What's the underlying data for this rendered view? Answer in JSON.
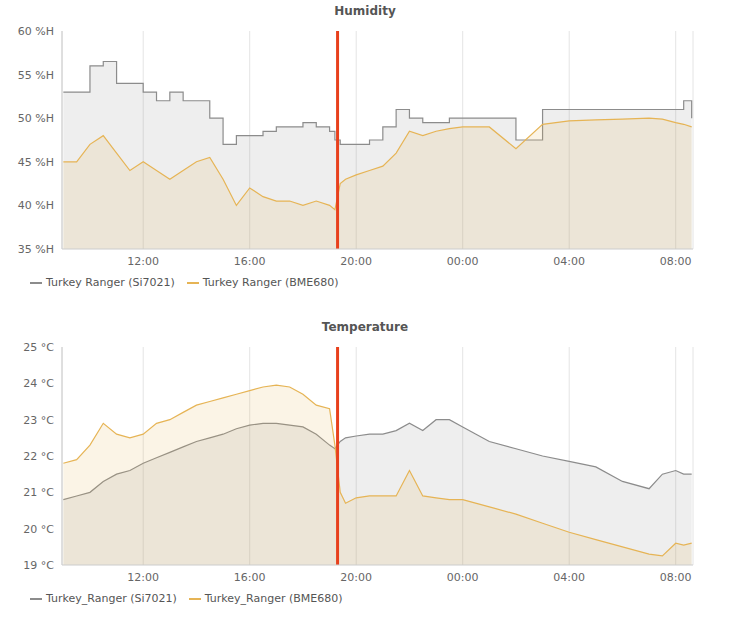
{
  "chart_data": [
    {
      "type": "area",
      "title": "Humidity",
      "x": [
        9,
        9.5,
        10,
        10.5,
        11,
        11.5,
        12,
        12.5,
        13,
        13.5,
        14,
        14.5,
        15,
        15.5,
        16,
        16.5,
        17,
        17.5,
        18,
        18.5,
        19,
        19.2,
        19.4,
        19.6,
        20,
        20.5,
        21,
        21.5,
        22,
        22.5,
        23,
        23.5,
        24,
        25,
        26,
        27,
        28,
        29,
        30,
        31,
        31.5,
        32,
        32.3,
        32.6
      ],
      "series": [
        {
          "name": "Turkey Ranger (Si7021)",
          "color": "#8c8c8c",
          "line_style": "step",
          "values": [
            53,
            53,
            56,
            56.5,
            54,
            54,
            53,
            52,
            53,
            52,
            52,
            50,
            47,
            48,
            48,
            48.5,
            49,
            49,
            49.5,
            49,
            48.5,
            47.5,
            47,
            47,
            47,
            47.5,
            49,
            51,
            50,
            49.5,
            49.5,
            50,
            50,
            50,
            47.5,
            51,
            51,
            51,
            51,
            51,
            51,
            51,
            52,
            50
          ]
        },
        {
          "name": "Turkey Ranger (BME680)",
          "color": "#e6b455",
          "values": [
            45,
            45,
            47,
            48,
            46,
            44,
            45,
            44,
            43,
            44,
            45,
            45.5,
            43,
            40,
            42,
            41,
            40.5,
            40.5,
            40,
            40.5,
            40,
            39.5,
            42.5,
            43,
            43.5,
            44,
            44.5,
            46,
            48.5,
            48,
            48.5,
            48.8,
            49,
            49,
            46.5,
            49.3,
            49.7,
            49.8,
            49.9,
            50,
            49.9,
            49.5,
            49.3,
            49
          ]
        }
      ],
      "xlim": [
        8.95,
        32.65
      ],
      "xticks": [
        {
          "value": 12,
          "label": "12:00"
        },
        {
          "value": 16,
          "label": "16:00"
        },
        {
          "value": 20,
          "label": "20:00"
        },
        {
          "value": 24,
          "label": "00:00"
        },
        {
          "value": 28,
          "label": "04:00"
        },
        {
          "value": 32,
          "label": "08:00"
        }
      ],
      "ylim": [
        35,
        60
      ],
      "yticks": [
        {
          "value": 35,
          "label": "35 %H"
        },
        {
          "value": 40,
          "label": "40 %H"
        },
        {
          "value": 45,
          "label": "45 %H"
        },
        {
          "value": 50,
          "label": "50 %H"
        },
        {
          "value": 55,
          "label": "55 %H"
        },
        {
          "value": 60,
          "label": "60 %H"
        }
      ],
      "grid": true,
      "legend": "bottom left",
      "reference_line": {
        "x": 19.3,
        "color": "#e8401c"
      }
    },
    {
      "type": "area",
      "title": "Temperature",
      "x": [
        9,
        9.5,
        10,
        10.5,
        11,
        11.5,
        12,
        12.5,
        13,
        13.5,
        14,
        14.5,
        15,
        15.5,
        16,
        16.5,
        17,
        17.5,
        18,
        18.5,
        19,
        19.2,
        19.4,
        19.6,
        20,
        20.5,
        21,
        21.5,
        22,
        22.5,
        23,
        23.5,
        24,
        25,
        26,
        27,
        28,
        29,
        30,
        31,
        31.5,
        32,
        32.3,
        32.6
      ],
      "series": [
        {
          "name": "Turkey_Ranger (Si7021)",
          "color": "#8c8c8c",
          "values": [
            20.8,
            20.9,
            21,
            21.3,
            21.5,
            21.6,
            21.8,
            21.95,
            22.1,
            22.25,
            22.4,
            22.5,
            22.6,
            22.75,
            22.85,
            22.9,
            22.9,
            22.85,
            22.8,
            22.6,
            22.3,
            22.2,
            22.4,
            22.5,
            22.55,
            22.6,
            22.6,
            22.7,
            22.9,
            22.7,
            23,
            23,
            22.8,
            22.4,
            22.2,
            22,
            21.85,
            21.7,
            21.3,
            21.1,
            21.5,
            21.6,
            21.5,
            21.5
          ]
        },
        {
          "name": "Turkey_Ranger (BME680)",
          "color": "#e6b455",
          "values": [
            21.8,
            21.9,
            22.3,
            22.9,
            22.6,
            22.5,
            22.6,
            22.9,
            23,
            23.2,
            23.4,
            23.5,
            23.6,
            23.7,
            23.8,
            23.9,
            23.95,
            23.9,
            23.7,
            23.4,
            23.3,
            22.3,
            21,
            20.7,
            20.85,
            20.9,
            20.9,
            20.9,
            21.6,
            20.9,
            20.85,
            20.8,
            20.8,
            20.6,
            20.4,
            20.15,
            19.9,
            19.7,
            19.5,
            19.3,
            19.25,
            19.6,
            19.55,
            19.6
          ]
        }
      ],
      "xlim": [
        8.95,
        32.65
      ],
      "xticks": [
        {
          "value": 12,
          "label": "12:00"
        },
        {
          "value": 16,
          "label": "16:00"
        },
        {
          "value": 20,
          "label": "20:00"
        },
        {
          "value": 24,
          "label": "00:00"
        },
        {
          "value": 28,
          "label": "04:00"
        },
        {
          "value": 32,
          "label": "08:00"
        }
      ],
      "ylim": [
        19,
        25
      ],
      "yticks": [
        {
          "value": 19,
          "label": "19 °C"
        },
        {
          "value": 20,
          "label": "20 °C"
        },
        {
          "value": 21,
          "label": "21 °C"
        },
        {
          "value": 22,
          "label": "22 °C"
        },
        {
          "value": 23,
          "label": "23 °C"
        },
        {
          "value": 24,
          "label": "24 °C"
        },
        {
          "value": 25,
          "label": "25 °C"
        }
      ],
      "grid": true,
      "legend": "bottom left",
      "reference_line": {
        "x": 19.3,
        "color": "#e8401c"
      }
    }
  ]
}
